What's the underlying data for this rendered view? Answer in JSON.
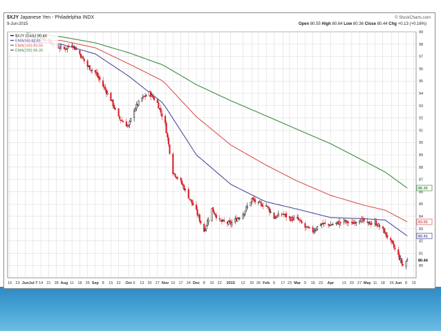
{
  "header": {
    "symbol": "$XJY",
    "name": "Japanese Yen - Philadelphia INDX",
    "date": "9-Jun-2015",
    "brand": "© StockCharts.com",
    "ohlc": [
      {
        "label": "Open",
        "value": "80.55"
      },
      {
        "label": "High",
        "value": "80.64"
      },
      {
        "label": "Low",
        "value": "80.36"
      },
      {
        "label": "Close",
        "value": "80.44"
      },
      {
        "label": "Chg",
        "value": "+0.13 (+0.16%)"
      }
    ]
  },
  "colors": {
    "up": "#111111",
    "down": "#d6202a",
    "ema50": "#4a4a9e",
    "ema100": "#d9534f",
    "ema200": "#3c8a3c",
    "grid": "#d6d6d6",
    "plot_bg": "#ffffff",
    "footer": "#3a96cc"
  },
  "chart_data": {
    "type": "line",
    "title": "$XJY Japanese Yen - Philadelphia INDX",
    "xlabel": "",
    "ylabel": "",
    "ylim": [
      79,
      99
    ],
    "yticks": [
      80,
      81,
      82,
      83,
      84,
      85,
      86,
      87,
      88,
      89,
      90,
      91,
      92,
      93,
      94,
      95,
      96,
      97,
      98,
      99
    ],
    "x_range": [
      "2014-06-14",
      "2015-06-17"
    ],
    "grid": true,
    "legend_position": "top-left",
    "legend": [
      {
        "label": "$XJY (Daily) 80.44",
        "color": "#111111",
        "key": "price"
      },
      {
        "label": "EMA(50) 82.41",
        "color": "#4a4a9e",
        "key": "ema50"
      },
      {
        "label": "EMA(100) 83.55",
        "color": "#d9534f",
        "key": "ema100"
      },
      {
        "label": "EMA(200) 86.30",
        "color": "#3c8a3c",
        "key": "ema200"
      }
    ],
    "last_labels": [
      {
        "text": "86.30",
        "value": 86.3,
        "key": "ema200"
      },
      {
        "text": "83.55",
        "value": 83.55,
        "key": "ema100"
      },
      {
        "text": "82.41",
        "value": 82.41,
        "key": "ema50"
      },
      {
        "text": "80.44",
        "value": 80.44,
        "key": "price"
      }
    ],
    "x_ticks": [
      {
        "date": "2014-06-16",
        "label": "16"
      },
      {
        "date": "2014-06-23",
        "label": "23"
      },
      {
        "date": "2014-06-30",
        "label": "Jun"
      },
      {
        "date": "2014-07-07",
        "label": "Jul 7"
      },
      {
        "date": "2014-07-14",
        "label": "14"
      },
      {
        "date": "2014-07-21",
        "label": "21"
      },
      {
        "date": "2014-07-28",
        "label": "28"
      },
      {
        "date": "2014-08-04",
        "label": "Aug"
      },
      {
        "date": "2014-08-11",
        "label": "11"
      },
      {
        "date": "2014-08-18",
        "label": "18"
      },
      {
        "date": "2014-08-25",
        "label": "25"
      },
      {
        "date": "2014-09-01",
        "label": "Sep"
      },
      {
        "date": "2014-09-08",
        "label": "8"
      },
      {
        "date": "2014-09-15",
        "label": "15"
      },
      {
        "date": "2014-09-22",
        "label": "22"
      },
      {
        "date": "2014-10-01",
        "label": "Oct"
      },
      {
        "date": "2014-10-06",
        "label": "6"
      },
      {
        "date": "2014-10-13",
        "label": "13"
      },
      {
        "date": "2014-10-20",
        "label": "20"
      },
      {
        "date": "2014-10-27",
        "label": "27"
      },
      {
        "date": "2014-11-03",
        "label": "Nov"
      },
      {
        "date": "2014-11-10",
        "label": "10"
      },
      {
        "date": "2014-11-17",
        "label": "17"
      },
      {
        "date": "2014-11-24",
        "label": "24"
      },
      {
        "date": "2014-12-01",
        "label": "Dec"
      },
      {
        "date": "2014-12-08",
        "label": "8"
      },
      {
        "date": "2014-12-15",
        "label": "15"
      },
      {
        "date": "2014-12-22",
        "label": "22"
      },
      {
        "date": "2015-01-01",
        "label": "2015"
      },
      {
        "date": "2015-01-12",
        "label": "12"
      },
      {
        "date": "2015-01-20",
        "label": "20"
      },
      {
        "date": "2015-01-26",
        "label": "26"
      },
      {
        "date": "2015-02-02",
        "label": "Feb"
      },
      {
        "date": "2015-02-09",
        "label": "9"
      },
      {
        "date": "2015-02-17",
        "label": "17"
      },
      {
        "date": "2015-02-23",
        "label": "23"
      },
      {
        "date": "2015-03-02",
        "label": "Mar"
      },
      {
        "date": "2015-03-09",
        "label": "9"
      },
      {
        "date": "2015-03-16",
        "label": "16"
      },
      {
        "date": "2015-03-23",
        "label": "23"
      },
      {
        "date": "2015-04-01",
        "label": "Apr"
      },
      {
        "date": "2015-04-13",
        "label": "13"
      },
      {
        "date": "2015-04-20",
        "label": "20"
      },
      {
        "date": "2015-04-27",
        "label": "27"
      },
      {
        "date": "2015-05-04",
        "label": "May"
      },
      {
        "date": "2015-05-11",
        "label": "11"
      },
      {
        "date": "2015-05-18",
        "label": "18"
      },
      {
        "date": "2015-05-26",
        "label": "26"
      },
      {
        "date": "2015-06-01",
        "label": "Jun"
      },
      {
        "date": "2015-06-08",
        "label": "8"
      },
      {
        "date": "2015-06-15",
        "label": "15"
      }
    ],
    "ema_series": [
      {
        "key": "ema200",
        "points": [
          [
            "2014-07-01",
            98.9
          ],
          [
            "2014-08-01",
            98.6
          ],
          [
            "2014-09-01",
            98.1
          ],
          [
            "2014-10-01",
            97.3
          ],
          [
            "2014-11-01",
            96.3
          ],
          [
            "2014-12-01",
            94.7
          ],
          [
            "2015-01-01",
            93.4
          ],
          [
            "2015-02-01",
            92.2
          ],
          [
            "2015-03-01",
            91.1
          ],
          [
            "2015-04-01",
            89.9
          ],
          [
            "2015-05-01",
            88.5
          ],
          [
            "2015-05-20",
            87.6
          ],
          [
            "2015-06-09",
            86.3
          ]
        ]
      },
      {
        "key": "ema100",
        "points": [
          [
            "2014-07-01",
            98.3
          ],
          [
            "2014-08-01",
            98.3
          ],
          [
            "2014-09-01",
            97.7
          ],
          [
            "2014-10-01",
            96.4
          ],
          [
            "2014-11-01",
            95.0
          ],
          [
            "2014-12-01",
            92.1
          ],
          [
            "2015-01-01",
            89.8
          ],
          [
            "2015-02-01",
            88.2
          ],
          [
            "2015-03-01",
            86.9
          ],
          [
            "2015-04-01",
            85.7
          ],
          [
            "2015-05-01",
            84.9
          ],
          [
            "2015-05-20",
            84.5
          ],
          [
            "2015-06-09",
            83.55
          ]
        ]
      },
      {
        "key": "ema50",
        "points": [
          [
            "2014-07-01",
            98.2
          ],
          [
            "2014-08-01",
            98.0
          ],
          [
            "2014-09-01",
            97.2
          ],
          [
            "2014-10-01",
            95.4
          ],
          [
            "2014-11-01",
            93.2
          ],
          [
            "2014-12-01",
            89.0
          ],
          [
            "2015-01-01",
            86.6
          ],
          [
            "2015-02-01",
            85.2
          ],
          [
            "2015-03-01",
            84.6
          ],
          [
            "2015-04-01",
            83.9
          ],
          [
            "2015-05-01",
            83.8
          ],
          [
            "2015-05-20",
            83.7
          ],
          [
            "2015-06-09",
            82.41
          ]
        ]
      }
    ],
    "price_anchors": [
      [
        "2014-07-07",
        98.2
      ],
      [
        "2014-07-14",
        98.6
      ],
      [
        "2014-07-21",
        98.3
      ],
      [
        "2014-07-28",
        97.8
      ],
      [
        "2014-08-04",
        97.6
      ],
      [
        "2014-08-11",
        98.0
      ],
      [
        "2014-08-18",
        97.2
      ],
      [
        "2014-08-25",
        96.2
      ],
      [
        "2014-09-01",
        95.7
      ],
      [
        "2014-09-08",
        94.6
      ],
      [
        "2014-09-15",
        93.5
      ],
      [
        "2014-09-22",
        92.0
      ],
      [
        "2014-10-01",
        91.3
      ],
      [
        "2014-10-06",
        92.7
      ],
      [
        "2014-10-13",
        93.6
      ],
      [
        "2014-10-20",
        94.0
      ],
      [
        "2014-10-27",
        93.2
      ],
      [
        "2014-11-03",
        91.5
      ],
      [
        "2014-11-10",
        87.6
      ],
      [
        "2014-11-17",
        86.8
      ],
      [
        "2014-11-24",
        85.6
      ],
      [
        "2014-12-01",
        84.4
      ],
      [
        "2014-12-08",
        82.8
      ],
      [
        "2014-12-15",
        84.6
      ],
      [
        "2014-12-22",
        83.6
      ],
      [
        "2015-01-01",
        83.4
      ],
      [
        "2015-01-12",
        84.2
      ],
      [
        "2015-01-20",
        85.4
      ],
      [
        "2015-01-26",
        85.0
      ],
      [
        "2015-02-02",
        84.9
      ],
      [
        "2015-02-09",
        83.9
      ],
      [
        "2015-02-17",
        84.2
      ],
      [
        "2015-02-23",
        83.8
      ],
      [
        "2015-03-02",
        83.8
      ],
      [
        "2015-03-09",
        83.1
      ],
      [
        "2015-03-16",
        82.8
      ],
      [
        "2015-03-23",
        83.4
      ],
      [
        "2015-04-01",
        83.3
      ],
      [
        "2015-04-13",
        83.6
      ],
      [
        "2015-04-20",
        83.4
      ],
      [
        "2015-04-27",
        83.8
      ],
      [
        "2015-05-04",
        83.4
      ],
      [
        "2015-05-11",
        83.5
      ],
      [
        "2015-05-18",
        82.9
      ],
      [
        "2015-05-26",
        81.8
      ],
      [
        "2015-06-01",
        80.8
      ],
      [
        "2015-06-05",
        80.0
      ],
      [
        "2015-06-09",
        80.44
      ]
    ]
  }
}
